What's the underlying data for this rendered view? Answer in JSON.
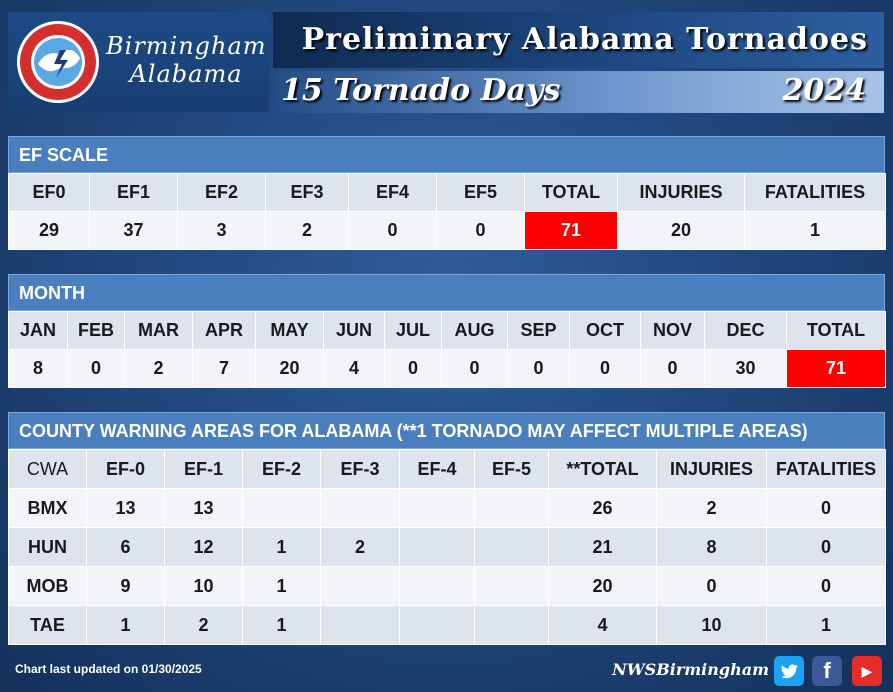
{
  "header": {
    "office": [
      "Birmingham",
      "Alabama"
    ],
    "title": "Preliminary Alabama Tornadoes",
    "subtitle": "15 Tornado Days",
    "year": "2024"
  },
  "ef_scale": {
    "heading": "EF SCALE",
    "columns": [
      "EF0",
      "EF1",
      "EF2",
      "EF3",
      "EF4",
      "EF5",
      "TOTAL",
      "INJURIES",
      "FATALITIES"
    ],
    "values": [
      "29",
      "37",
      "3",
      "2",
      "0",
      "0",
      "71",
      "20",
      "1"
    ]
  },
  "month": {
    "heading": "MONTH",
    "columns": [
      "JAN",
      "FEB",
      "MAR",
      "APR",
      "MAY",
      "JUN",
      "JUL",
      "AUG",
      "SEP",
      "OCT",
      "NOV",
      "DEC",
      "TOTAL"
    ],
    "values": [
      "8",
      "0",
      "2",
      "7",
      "20",
      "4",
      "0",
      "0",
      "0",
      "0",
      "0",
      "30",
      "71"
    ]
  },
  "cwa": {
    "heading": "COUNTY WARNING AREAS FOR ALABAMA (**1 TORNADO MAY AFFECT MULTIPLE AREAS)",
    "columns": [
      "CWA",
      "EF-0",
      "EF-1",
      "EF-2",
      "EF-3",
      "EF-4",
      "EF-5",
      "**TOTAL",
      "INJURIES",
      "FATALITIES"
    ],
    "rows": [
      [
        "BMX",
        "13",
        "13",
        "",
        "",
        "",
        "",
        "26",
        "2",
        "0"
      ],
      [
        "HUN",
        "6",
        "12",
        "1",
        "2",
        "",
        "",
        "21",
        "8",
        "0"
      ],
      [
        "MOB",
        "9",
        "10",
        "1",
        "",
        "",
        "",
        "20",
        "0",
        "0"
      ],
      [
        "TAE",
        "1",
        "2",
        "1",
        "",
        "",
        "",
        "4",
        "10",
        "1"
      ]
    ]
  },
  "footer": {
    "updated": "Chart last updated on 01/30/2025",
    "handle": "NWSBirmingham"
  },
  "icons": {
    "seal": "national-weather-service-seal",
    "twitter": "twitter-icon",
    "facebook": "facebook-icon",
    "youtube": "youtube-icon"
  },
  "colors": {
    "highlight": "#ff0000",
    "section_head": "#4a7fbf"
  }
}
